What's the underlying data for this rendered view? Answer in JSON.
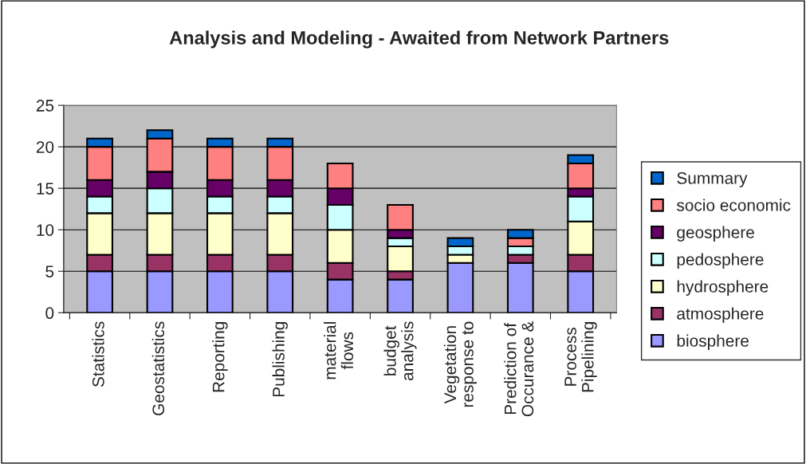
{
  "chart_data": {
    "type": "bar",
    "title": "Analysis and Modeling - Awaited from Network Partners",
    "categories": [
      "Statistics",
      "Geostatistics",
      "Reporting",
      "Publishing",
      "material\nflows",
      "budget\nanalysis",
      "Vegetation\nresponse to",
      "Prediction of\nOccurance &",
      "Process\nPipelining"
    ],
    "stacked": true,
    "series": [
      {
        "name": "biosphere",
        "color": "#9999ff",
        "values": [
          5,
          5,
          5,
          5,
          4,
          4,
          6,
          6,
          5
        ]
      },
      {
        "name": "atmosphere",
        "color": "#993366",
        "values": [
          2,
          2,
          2,
          2,
          2,
          1,
          0,
          1,
          2
        ]
      },
      {
        "name": "hydrosphere",
        "color": "#ffffcc",
        "values": [
          5,
          5,
          5,
          5,
          4,
          3,
          1,
          0,
          4
        ]
      },
      {
        "name": "pedosphere",
        "color": "#ccffff",
        "values": [
          2,
          3,
          2,
          2,
          3,
          1,
          1,
          1,
          3
        ]
      },
      {
        "name": "geosphere",
        "color": "#660066",
        "values": [
          2,
          2,
          2,
          2,
          2,
          1,
          0,
          0,
          1
        ]
      },
      {
        "name": "socio economic",
        "color": "#ff8080",
        "values": [
          4,
          4,
          4,
          4,
          3,
          3,
          0,
          1,
          3
        ]
      },
      {
        "name": "Summary",
        "color": "#0066cc",
        "values": [
          1,
          1,
          1,
          1,
          0,
          0,
          1,
          1,
          1
        ]
      }
    ],
    "ylim": [
      0,
      25
    ],
    "yticks": [
      0,
      5,
      10,
      15,
      20,
      25
    ],
    "grid": "y",
    "legend": "right"
  }
}
